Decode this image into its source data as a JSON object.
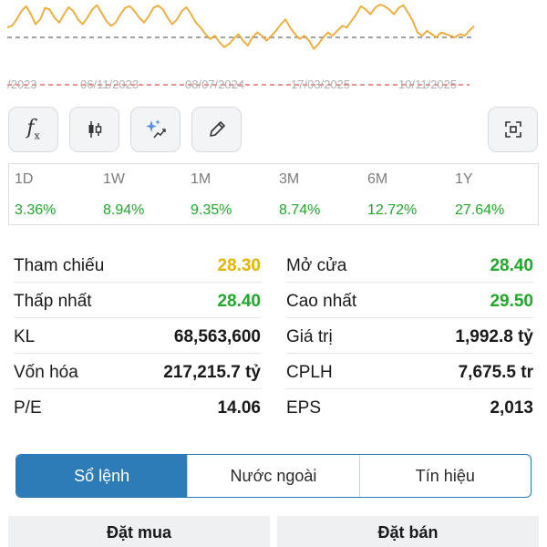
{
  "chart_data": {
    "type": "line",
    "x_ticks": [
      "/2023",
      "06/11/2023",
      "08/07/2024",
      "17/03/2025",
      "10/11/2025"
    ],
    "values": [
      0.3,
      0.35,
      0.55,
      0.8,
      0.95,
      0.7,
      0.4,
      0.55,
      0.9,
      0.85,
      0.6,
      0.45,
      0.7,
      0.92,
      0.8,
      0.55,
      0.4,
      0.6,
      0.85,
      0.98,
      0.75,
      0.5,
      0.35,
      0.45,
      0.7,
      0.9,
      0.95,
      0.8,
      0.6,
      0.45,
      0.65,
      0.9,
      0.97,
      0.85,
      0.6,
      0.4,
      0.55,
      0.8,
      0.92,
      0.7,
      0.45,
      0.3,
      0.1,
      -0.05,
      0.05,
      -0.15,
      -0.3,
      -0.2,
      -0.05,
      0.1,
      -0.1,
      -0.25,
      0.0,
      0.15,
      0.05,
      -0.1,
      0.05,
      0.2,
      0.4,
      0.55,
      0.3,
      0.1,
      -0.05,
      0.05,
      -0.1,
      -0.35,
      -0.2,
      0.0,
      0.15,
      0.05,
      0.2,
      0.35,
      0.3,
      0.5,
      0.7,
      0.95,
      0.85,
      0.7,
      0.9,
      1.0,
      0.95,
      0.85,
      0.7,
      0.9,
      0.98,
      0.75,
      0.5,
      0.15,
      0.05,
      0.2,
      0.1,
      0.0,
      0.15,
      0.1,
      0.05,
      0.0,
      0.1,
      0.05,
      0.2,
      0.35
    ],
    "reference_line": 0.0,
    "color": "#f0a830",
    "reference_color": "#6b6b6b",
    "axis_color": "#e05050"
  },
  "tools": {
    "left": [
      "function-icon",
      "candlestick-icon",
      "ai-sparkle-icon",
      "pencil-icon"
    ],
    "right": "fullscreen-icon"
  },
  "performance": [
    {
      "period": "1D",
      "change": "3.36%"
    },
    {
      "period": "1W",
      "change": "8.94%"
    },
    {
      "period": "1M",
      "change": "9.35%"
    },
    {
      "period": "3M",
      "change": "8.74%"
    },
    {
      "period": "6M",
      "change": "12.72%"
    },
    {
      "period": "1Y",
      "change": "27.64%"
    }
  ],
  "stats": {
    "left": [
      {
        "label": "Tham chiếu",
        "value": "28.30",
        "tone": "yellow"
      },
      {
        "label": "Thấp nhất",
        "value": "28.40",
        "tone": "green"
      },
      {
        "label": "KL",
        "value": "68,563,600",
        "tone": "dark"
      },
      {
        "label": "Vốn hóa",
        "value": "217,215.7 tỷ",
        "tone": "dark"
      },
      {
        "label": "P/E",
        "value": "14.06",
        "tone": "dark"
      }
    ],
    "right": [
      {
        "label": "Mở cửa",
        "value": "28.40",
        "tone": "green"
      },
      {
        "label": "Cao nhất",
        "value": "29.50",
        "tone": "green"
      },
      {
        "label": "Giá trị",
        "value": "1,992.8 tỷ",
        "tone": "dark"
      },
      {
        "label": "CPLH",
        "value": "7,675.5 tr",
        "tone": "dark"
      },
      {
        "label": "EPS",
        "value": "2,013",
        "tone": "dark"
      }
    ]
  },
  "tabs": [
    {
      "label": "Sổ lệnh",
      "active": true
    },
    {
      "label": "Nước ngoài",
      "active": false
    },
    {
      "label": "Tín hiệu",
      "active": false
    }
  ],
  "orders": {
    "buy_label": "Đặt mua",
    "sell_label": "Đặt bán"
  }
}
